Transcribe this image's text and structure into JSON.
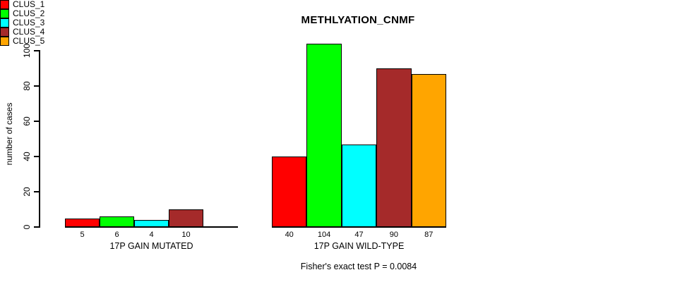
{
  "chart_data": {
    "type": "bar",
    "title": "METHLYATION_CNMF",
    "ylabel": "number of cases",
    "xlabel": "",
    "ylim": [
      0,
      100
    ],
    "yticks": [
      0,
      20,
      40,
      60,
      80,
      100
    ],
    "grid": false,
    "legend_position": "right",
    "legend": [
      {
        "label": "CLUS_1",
        "color": "#ff0000"
      },
      {
        "label": "CLUS_2",
        "color": "#00ff00"
      },
      {
        "label": "CLUS_3",
        "color": "#00ffff"
      },
      {
        "label": "CLUS_4",
        "color": "#a52a2a"
      },
      {
        "label": "CLUS_5",
        "color": "#ffa500"
      }
    ],
    "groups": [
      {
        "label": "17P GAIN MUTATED",
        "values": [
          5,
          6,
          4,
          10,
          0
        ],
        "value_labels": [
          "5",
          "6",
          "4",
          "10",
          ""
        ]
      },
      {
        "label": "17P GAIN WILD-TYPE",
        "values": [
          40,
          104,
          47,
          90,
          87
        ],
        "value_labels": [
          "40",
          "104",
          "47",
          "90",
          "87"
        ]
      }
    ],
    "annotation": "Fisher's exact test P = 0.0084",
    "axis_color": "#000000"
  }
}
